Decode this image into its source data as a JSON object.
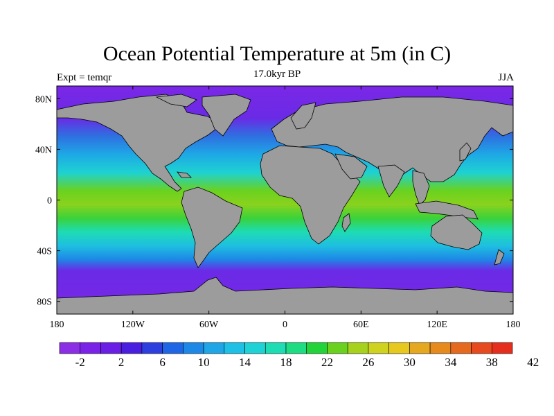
{
  "title": "Ocean Potential Temperature at 5m (in C)",
  "subtitle": "17.0kyr BP",
  "left_label": "Expt = temqr",
  "right_label": "JJA",
  "lat_ticks": [
    {
      "value": 80,
      "label": "80N"
    },
    {
      "value": 40,
      "label": "40N"
    },
    {
      "value": 0,
      "label": "0"
    },
    {
      "value": -40,
      "label": "40S"
    },
    {
      "value": -80,
      "label": "80S"
    }
  ],
  "lon_ticks": [
    {
      "value": -180,
      "label": "180"
    },
    {
      "value": -120,
      "label": "120W"
    },
    {
      "value": -60,
      "label": "60W"
    },
    {
      "value": 0,
      "label": "0"
    },
    {
      "value": 60,
      "label": "60E"
    },
    {
      "value": 120,
      "label": "120E"
    },
    {
      "value": 180,
      "label": "180"
    }
  ],
  "colorbar": {
    "colors": [
      "#8c2ee6",
      "#7a22e8",
      "#6a1ee6",
      "#4a1ee0",
      "#2e3fe0",
      "#1e66e6",
      "#1e88e6",
      "#1ea6e6",
      "#1ec0e6",
      "#1ed2d6",
      "#1edcb4",
      "#1edc82",
      "#22d43a",
      "#6ad21e",
      "#a6d21e",
      "#cfd21e",
      "#e6c81e",
      "#e6a81e",
      "#e68a1e",
      "#e66a1e",
      "#e64a1e",
      "#e62e1e"
    ],
    "labels": [
      "-2",
      "2",
      "6",
      "10",
      "14",
      "18",
      "22",
      "26",
      "30",
      "34",
      "38",
      "42"
    ]
  },
  "map": {
    "land_color": "#9c9c9c",
    "polar_ocean_color": "#7a28e6"
  }
}
